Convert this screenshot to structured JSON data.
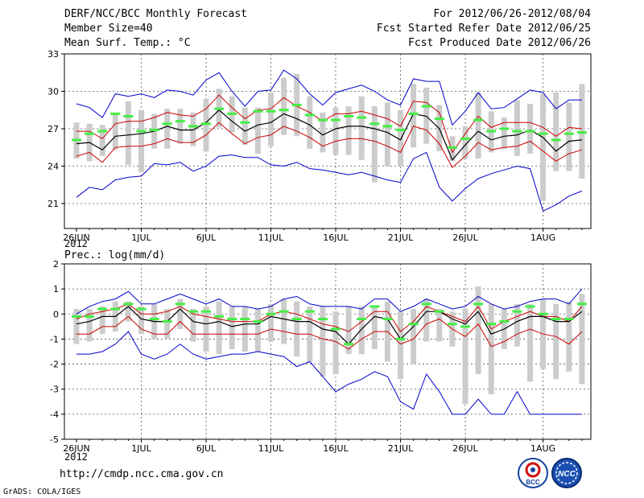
{
  "header": {
    "title": "DERF/NCC/BCC Monthly Forecast",
    "member_size": "Member Size=40",
    "variable": "Mean Surf. Temp.: °C",
    "period": "For 2012/06/26-2012/08/04",
    "refer_date": "Fcst Started Refer Date 2012/06/25",
    "produced_date": "Fcst Produced Date 2012/06/26"
  },
  "footer": {
    "url": "http://cmdp.ncc.cma.gov.cn",
    "grads": "GrADS: COLA/IGES",
    "logo_left": "BCC",
    "logo_right": "NCC"
  },
  "colors": {
    "ensemble_mean": "#000000",
    "spread_band": "#cc0000",
    "min_max": "#0000cc",
    "member_bar": "#cccccc",
    "median_mark": "#44ee44"
  },
  "chart_data": [
    {
      "type": "line",
      "title": "Mean Surf. Temp.: °C",
      "x_dates": [
        "06/26",
        "06/27",
        "06/28",
        "06/29",
        "06/30",
        "07/01",
        "07/02",
        "07/03",
        "07/04",
        "07/05",
        "07/06",
        "07/07",
        "07/08",
        "07/09",
        "07/10",
        "07/11",
        "07/12",
        "07/13",
        "07/14",
        "07/15",
        "07/16",
        "07/17",
        "07/18",
        "07/19",
        "07/20",
        "07/21",
        "07/22",
        "07/23",
        "07/24",
        "07/25",
        "07/26",
        "07/27",
        "07/28",
        "07/29",
        "07/30",
        "07/31",
        "08/01",
        "08/02",
        "08/03",
        "08/04"
      ],
      "x_tick_labels": [
        "26JUN",
        "1JUL",
        "6JUL",
        "11JUL",
        "16JUL",
        "21JUL",
        "26JUL",
        "1AUG"
      ],
      "x_year_label": "2012",
      "ylim": [
        19,
        33
      ],
      "y_ticks": [
        21,
        24,
        27,
        30,
        33
      ],
      "grid": true,
      "series": [
        {
          "name": "max",
          "values": [
            29.0,
            28.7,
            27.9,
            29.8,
            29.6,
            29.8,
            29.5,
            30.1,
            30.0,
            29.7,
            30.9,
            31.5,
            30.0,
            28.8,
            30.0,
            30.1,
            31.7,
            31.0,
            29.8,
            28.9,
            29.9,
            30.2,
            30.5,
            30.0,
            29.3,
            28.9,
            31.0,
            30.8,
            30.8,
            27.3,
            28.4,
            29.9,
            28.6,
            28.7,
            29.4,
            30.1,
            29.9,
            28.6,
            29.3,
            29.3
          ]
        },
        {
          "name": "upper",
          "values": [
            26.8,
            26.8,
            26.2,
            27.4,
            27.6,
            27.6,
            27.9,
            28.3,
            28.1,
            28.0,
            28.6,
            29.7,
            28.7,
            27.8,
            28.5,
            28.6,
            29.5,
            28.8,
            28.3,
            27.6,
            28.2,
            28.2,
            28.4,
            28.1,
            27.8,
            27.2,
            29.2,
            29.1,
            28.3,
            25.1,
            26.6,
            28.0,
            27.1,
            27.5,
            27.5,
            27.5,
            27.1,
            26.4,
            27.1,
            27.0
          ]
        },
        {
          "name": "mean",
          "values": [
            25.8,
            25.9,
            25.3,
            26.4,
            26.5,
            26.6,
            26.8,
            27.2,
            26.9,
            26.9,
            27.5,
            28.5,
            27.6,
            26.8,
            27.3,
            27.5,
            28.2,
            27.8,
            27.3,
            26.5,
            27.0,
            27.2,
            27.2,
            27.0,
            26.7,
            26.1,
            28.2,
            28.0,
            27.0,
            24.5,
            25.7,
            26.8,
            26.1,
            26.4,
            26.5,
            26.9,
            26.3,
            25.2,
            26.0,
            26.1
          ]
        },
        {
          "name": "lower",
          "values": [
            24.8,
            25.1,
            24.3,
            25.5,
            25.6,
            25.6,
            25.8,
            26.2,
            25.9,
            25.9,
            26.5,
            27.5,
            26.6,
            25.8,
            26.3,
            26.5,
            27.2,
            26.8,
            26.3,
            25.6,
            26.0,
            26.2,
            26.2,
            26.0,
            25.6,
            25.1,
            27.2,
            26.9,
            25.8,
            23.9,
            24.8,
            25.9,
            25.3,
            25.5,
            25.6,
            26.0,
            25.2,
            24.4,
            25.0,
            25.3
          ]
        },
        {
          "name": "min",
          "values": [
            21.5,
            22.3,
            22.1,
            22.9,
            23.1,
            23.2,
            24.2,
            24.1,
            24.3,
            23.6,
            24.0,
            24.8,
            24.9,
            24.7,
            24.7,
            24.1,
            24.0,
            24.3,
            23.8,
            23.7,
            23.5,
            23.3,
            23.5,
            23.2,
            22.9,
            22.7,
            24.6,
            25.1,
            22.3,
            21.2,
            22.2,
            23.0,
            23.4,
            23.7,
            24.0,
            23.8,
            20.4,
            20.9,
            21.6,
            22.0
          ]
        },
        {
          "name": "median",
          "values": [
            26.1,
            26.6,
            26.8,
            28.2,
            28.0,
            26.8,
            26.9,
            27.4,
            27.6,
            27.2,
            27.4,
            28.6,
            28.2,
            27.5,
            28.4,
            28.4,
            28.5,
            28.9,
            28.1,
            27.7,
            27.7,
            28.0,
            27.9,
            27.4,
            27.2,
            26.9,
            28.2,
            28.8,
            27.8,
            25.5,
            26.2,
            27.7,
            26.8,
            27.0,
            26.8,
            26.8,
            26.6,
            26.1,
            26.6,
            26.7
          ]
        },
        {
          "name": "box_high",
          "values": [
            27.5,
            27.4,
            27.3,
            28.3,
            29.2,
            28.5,
            28.2,
            28.6,
            28.6,
            28.3,
            29.4,
            30.2,
            29.6,
            28.7,
            28.7,
            29.9,
            31.1,
            31.4,
            29.6,
            28.3,
            28.7,
            28.8,
            29.6,
            28.8,
            29.1,
            28.5,
            30.6,
            30.3,
            28.9,
            26.4,
            27.2,
            29.9,
            28.4,
            27.9,
            29.3,
            29.0,
            29.8,
            29.9,
            29.1,
            30.6
          ]
        },
        {
          "name": "box_low",
          "values": [
            24.6,
            24.4,
            24.8,
            25.3,
            24.1,
            23.5,
            25.4,
            25.4,
            25.8,
            25.6,
            25.2,
            27.1,
            26.7,
            25.7,
            25.0,
            25.6,
            26.5,
            26.4,
            25.4,
            25.1,
            24.9,
            24.9,
            24.5,
            22.7,
            24.0,
            24.0,
            25.5,
            25.8,
            25.2,
            24.4,
            24.6,
            24.6,
            25.1,
            25.4,
            24.8,
            25.0,
            21.2,
            23.6,
            23.6,
            23.0
          ]
        }
      ]
    },
    {
      "type": "line",
      "title": "Prec.: log(mm/d)",
      "x_dates": [
        "06/26",
        "06/27",
        "06/28",
        "06/29",
        "06/30",
        "07/01",
        "07/02",
        "07/03",
        "07/04",
        "07/05",
        "07/06",
        "07/07",
        "07/08",
        "07/09",
        "07/10",
        "07/11",
        "07/12",
        "07/13",
        "07/14",
        "07/15",
        "07/16",
        "07/17",
        "07/18",
        "07/19",
        "07/20",
        "07/21",
        "07/22",
        "07/23",
        "07/24",
        "07/25",
        "07/26",
        "07/27",
        "07/28",
        "07/29",
        "07/30",
        "07/31",
        "08/01",
        "08/02",
        "08/03",
        "08/04"
      ],
      "x_tick_labels": [
        "26JUN",
        "1JUL",
        "6JUL",
        "11JUL",
        "16JUL",
        "21JUL",
        "26JUL",
        "1AUG"
      ],
      "x_year_label": "2012",
      "ylim": [
        -5,
        2
      ],
      "y_ticks": [
        -5,
        -4,
        -3,
        -2,
        -1,
        0,
        1,
        2
      ],
      "grid": true,
      "series": [
        {
          "name": "max",
          "values": [
            0.0,
            0.3,
            0.5,
            0.6,
            0.9,
            0.4,
            0.4,
            0.6,
            0.8,
            0.6,
            0.4,
            0.6,
            0.3,
            0.3,
            0.2,
            0.3,
            0.6,
            0.7,
            0.4,
            0.3,
            0.3,
            0.3,
            0.2,
            0.6,
            0.6,
            0.1,
            0.3,
            0.6,
            0.4,
            0.2,
            0.3,
            0.7,
            0.4,
            0.2,
            0.3,
            0.5,
            0.6,
            0.6,
            0.4,
            1.0
          ]
        },
        {
          "name": "upper",
          "values": [
            -0.2,
            0.0,
            0.1,
            0.2,
            0.4,
            0.0,
            0.0,
            0.1,
            0.3,
            0.0,
            -0.1,
            -0.2,
            -0.3,
            -0.3,
            -0.3,
            0.0,
            0.1,
            0.0,
            -0.2,
            -0.4,
            -0.5,
            -0.7,
            -0.3,
            0.1,
            0.1,
            -0.7,
            -0.3,
            0.3,
            0.1,
            -0.1,
            -0.3,
            0.3,
            -0.6,
            -0.3,
            -0.1,
            0.1,
            -0.1,
            -0.1,
            -0.3,
            0.3
          ]
        },
        {
          "name": "mean",
          "values": [
            -0.4,
            -0.3,
            -0.1,
            -0.1,
            0.3,
            -0.2,
            -0.3,
            -0.3,
            0.2,
            -0.3,
            -0.4,
            -0.3,
            -0.5,
            -0.4,
            -0.4,
            -0.1,
            -0.2,
            -0.3,
            -0.3,
            -0.6,
            -0.7,
            -1.2,
            -0.6,
            -0.1,
            -0.2,
            -1.0,
            -0.5,
            0.1,
            0.1,
            -0.2,
            -0.4,
            0.1,
            -0.8,
            -0.6,
            -0.3,
            -0.1,
            -0.1,
            -0.3,
            -0.3,
            0.1
          ]
        },
        {
          "name": "lower",
          "values": [
            -0.8,
            -0.8,
            -0.5,
            -0.5,
            -0.1,
            -0.6,
            -0.8,
            -0.8,
            -0.3,
            -0.8,
            -0.8,
            -0.8,
            -0.8,
            -0.8,
            -0.8,
            -0.6,
            -0.7,
            -0.8,
            -0.8,
            -1.0,
            -1.1,
            -1.4,
            -1.0,
            -0.7,
            -0.7,
            -1.2,
            -1.0,
            -0.4,
            -0.2,
            -0.6,
            -0.9,
            -0.4,
            -1.3,
            -1.1,
            -0.8,
            -0.6,
            -0.8,
            -0.9,
            -1.2,
            -0.7
          ]
        },
        {
          "name": "min",
          "values": [
            -1.6,
            -1.6,
            -1.5,
            -1.2,
            -0.7,
            -1.6,
            -1.8,
            -1.6,
            -1.2,
            -1.6,
            -1.8,
            -1.7,
            -1.6,
            -1.6,
            -1.5,
            -1.6,
            -1.7,
            -2.1,
            -1.9,
            -2.5,
            -3.1,
            -2.8,
            -2.6,
            -2.3,
            -2.5,
            -3.5,
            -3.8,
            -2.4,
            -3.1,
            -4.0,
            -4.0,
            -3.4,
            -4.0,
            -4.0,
            -3.1,
            -4.0,
            -4.0,
            -4.0,
            -4.0,
            -4.0
          ]
        },
        {
          "name": "median",
          "values": [
            -0.1,
            -0.1,
            0.2,
            0.2,
            0.4,
            0.2,
            -0.2,
            -0.3,
            0.4,
            0.1,
            0.1,
            -0.1,
            -0.2,
            -0.2,
            -0.3,
            0.0,
            0.1,
            -0.2,
            0.1,
            -0.2,
            -0.6,
            -1.2,
            -0.2,
            0.3,
            -0.2,
            -1.0,
            -0.4,
            0.4,
            0.1,
            -0.4,
            -0.5,
            0.4,
            -0.4,
            -0.3,
            0.1,
            0.3,
            0.0,
            -0.2,
            -0.2,
            0.4
          ]
        },
        {
          "name": "box_high",
          "values": [
            0.2,
            0.2,
            0.3,
            0.5,
            0.5,
            0.3,
            0.4,
            0.2,
            0.6,
            0.2,
            0.3,
            0.5,
            0.3,
            0.3,
            0.2,
            0.4,
            0.6,
            0.5,
            0.3,
            0.3,
            0.1,
            0.3,
            0.3,
            0.3,
            0.5,
            0.1,
            0.2,
            0.6,
            0.2,
            0.1,
            0.2,
            1.1,
            0.4,
            0.2,
            0.4,
            0.4,
            0.6,
            0.4,
            0.5,
            0.8
          ]
        },
        {
          "name": "box_low",
          "values": [
            -1.2,
            -1.1,
            -0.8,
            -0.7,
            -0.3,
            -0.8,
            -1.0,
            -1.0,
            -0.6,
            -1.1,
            -1.5,
            -1.6,
            -1.4,
            -1.5,
            -1.5,
            -1.1,
            -1.2,
            -1.7,
            -1.9,
            -2.5,
            -2.4,
            -1.6,
            -1.6,
            -1.4,
            -1.9,
            -2.6,
            -2.0,
            -1.1,
            -1.1,
            -1.3,
            -3.6,
            -2.4,
            -3.2,
            -1.4,
            -1.3,
            -2.7,
            -2.2,
            -2.6,
            -2.3,
            -2.8
          ]
        }
      ]
    }
  ]
}
